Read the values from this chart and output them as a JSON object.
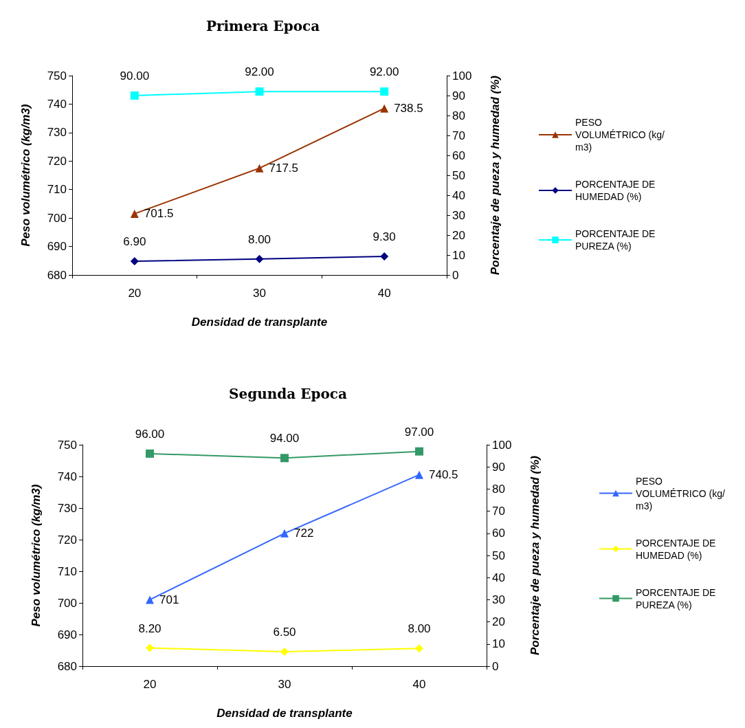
{
  "chart_data": [
    {
      "type": "line",
      "title": "Primera Epoca",
      "xlabel": "Densidad de transplante",
      "ylabel": "Peso volumétrico (kg/m3)",
      "y2label": "Porcentaje de pueza y humedad (%)",
      "categories": [
        "20",
        "30",
        "40"
      ],
      "ylim": [
        680,
        750
      ],
      "yticks": [
        680,
        690,
        700,
        710,
        720,
        730,
        740,
        750
      ],
      "y2lim": [
        0,
        100
      ],
      "y2ticks": [
        0,
        10,
        20,
        30,
        40,
        50,
        60,
        70,
        80,
        90,
        100
      ],
      "grid": false,
      "legend": "right",
      "series": [
        {
          "name": "PESO VOLUMÉTRICO (kg/m3)",
          "color": "#993300",
          "marker": "triangle",
          "values": [
            701.5,
            717.5,
            738.5
          ],
          "value_labels": [
            "701.5",
            "717.5",
            "738.5"
          ]
        },
        {
          "name": "PORCENTAJE DE HUMEDAD (%)",
          "color": "#000080",
          "marker": "diamond",
          "axis": "y2",
          "values": [
            6.9,
            8.0,
            9.3
          ],
          "value_labels": [
            "6.90",
            "8.00",
            "9.30"
          ]
        },
        {
          "name": "PORCENTAJE DE PUREZA (%)",
          "color": "#00ffff",
          "marker": "square",
          "axis": "y2",
          "values": [
            90,
            92,
            92
          ],
          "value_labels": [
            "90.00",
            "92.00",
            "92.00"
          ]
        }
      ]
    },
    {
      "type": "line",
      "title": "Segunda Epoca",
      "xlabel": "Densidad de transplante",
      "ylabel": "Peso volumétrico (kg/m3)",
      "y2label": "Porcentaje de pueza y humedad (%)",
      "categories": [
        "20",
        "30",
        "40"
      ],
      "ylim": [
        680,
        750
      ],
      "yticks": [
        680,
        690,
        700,
        710,
        720,
        730,
        740,
        750
      ],
      "y2lim": [
        0,
        100
      ],
      "y2ticks": [
        0,
        10,
        20,
        30,
        40,
        50,
        60,
        70,
        80,
        90,
        100
      ],
      "grid": false,
      "legend": "right",
      "series": [
        {
          "name": "PESO VOLUMÉTRICO (kg/m3)",
          "color": "#3366ff",
          "marker": "triangle",
          "values": [
            701,
            722,
            740.5
          ],
          "value_labels": [
            "701",
            "722",
            "740.5"
          ]
        },
        {
          "name": "PORCENTAJE DE HUMEDAD (%)",
          "color": "#ffff00",
          "marker": "diamond",
          "axis": "y2",
          "values": [
            8.2,
            6.5,
            8.0
          ],
          "value_labels": [
            "8.20",
            "6.50",
            "8.00"
          ]
        },
        {
          "name": "PORCENTAJE DE PUREZA (%)",
          "color": "#339966",
          "marker": "square",
          "axis": "y2",
          "values": [
            96,
            94,
            97
          ],
          "value_labels": [
            "96.00",
            "94.00",
            "97.00"
          ]
        }
      ]
    }
  ]
}
